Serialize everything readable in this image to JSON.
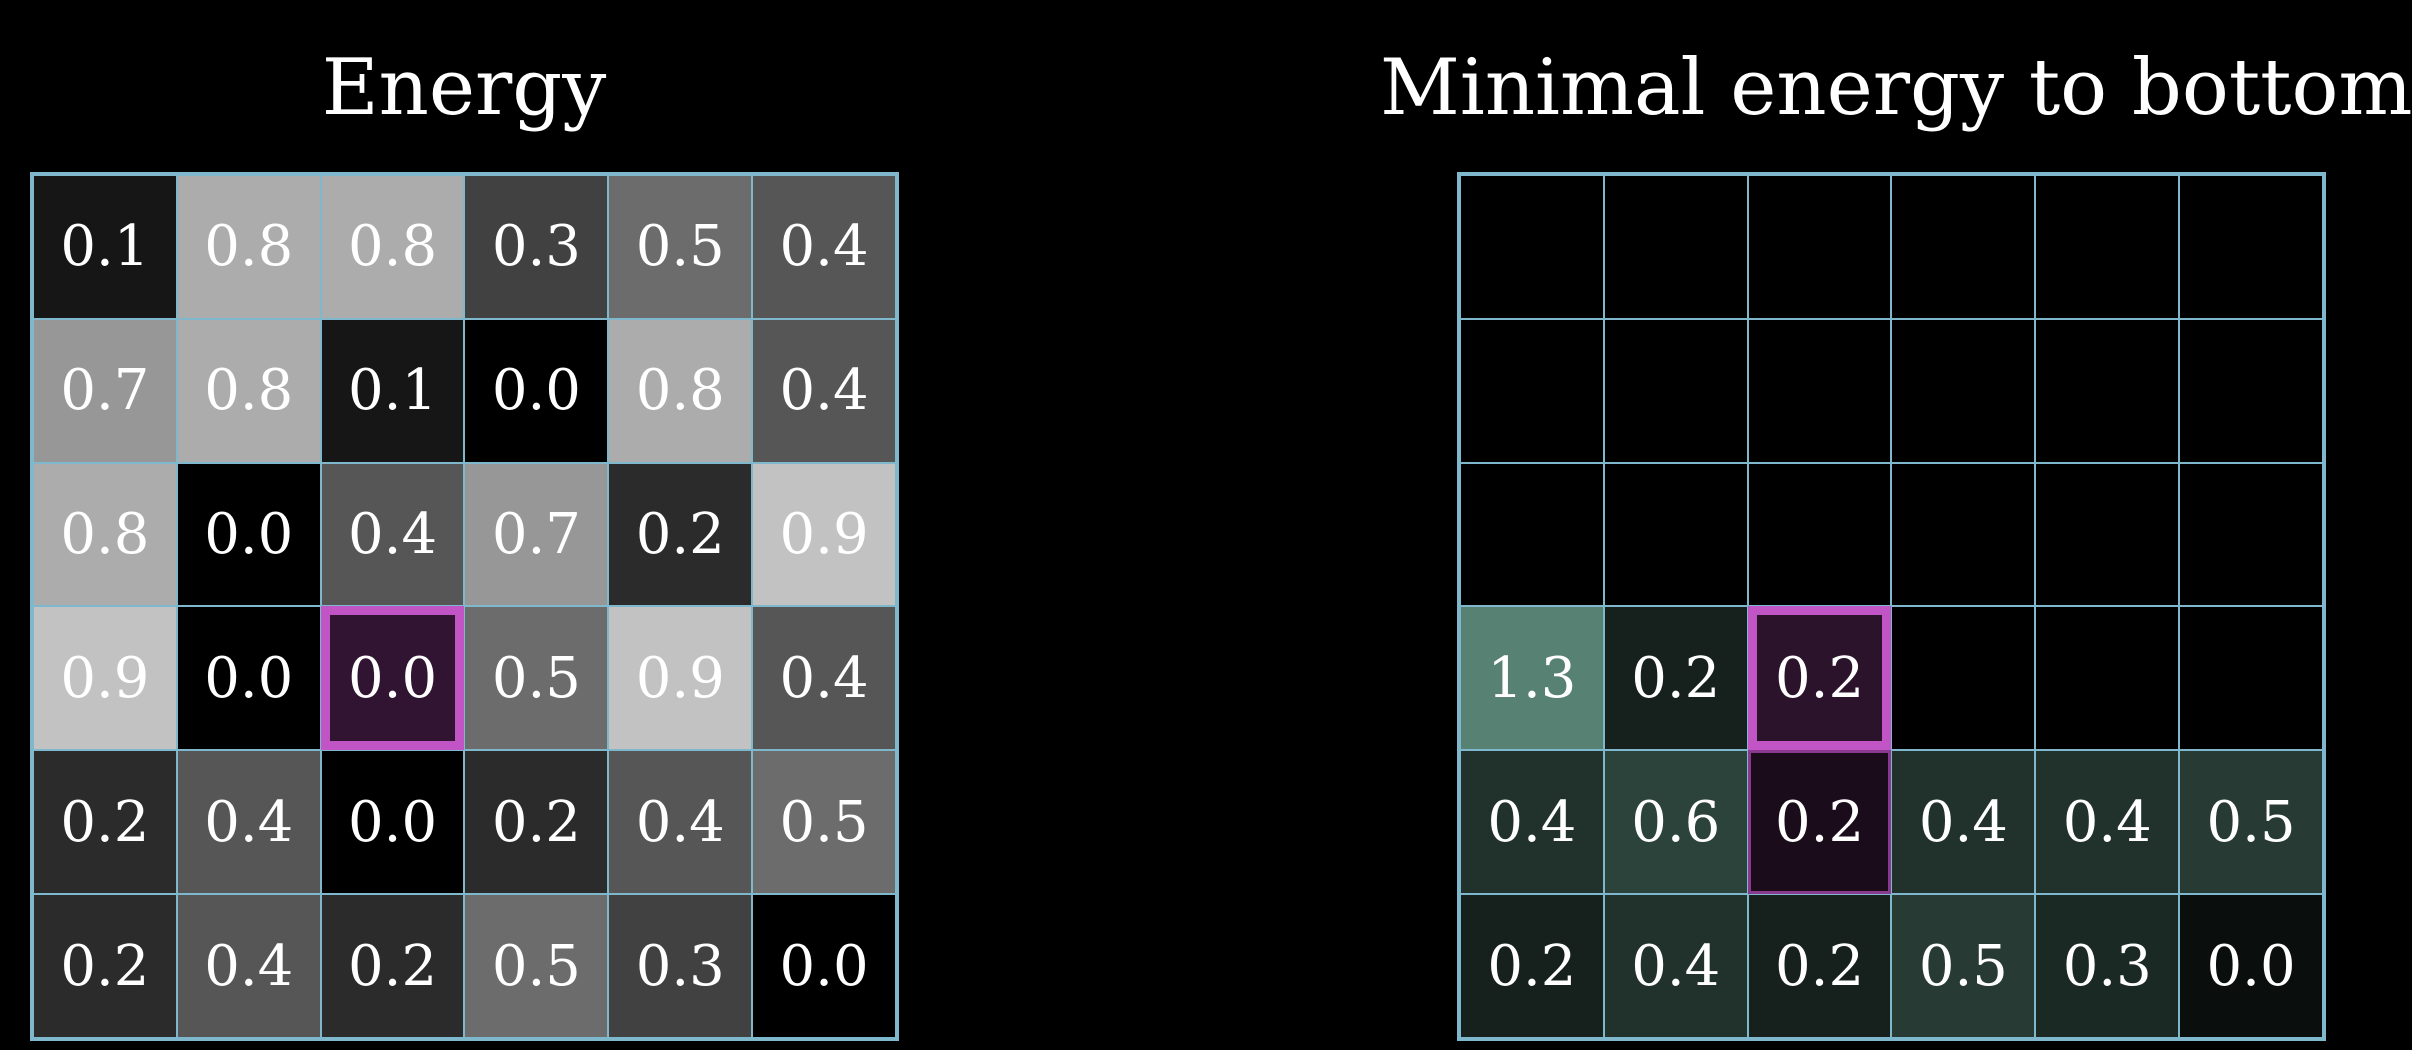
{
  "left_panel": {
    "title": "Energy",
    "grid": [
      [
        "0.1",
        "0.8",
        "0.8",
        "0.3",
        "0.5",
        "0.4"
      ],
      [
        "0.7",
        "0.8",
        "0.1",
        "0.0",
        "0.8",
        "0.4"
      ],
      [
        "0.8",
        "0.0",
        "0.4",
        "0.7",
        "0.2",
        "0.9"
      ],
      [
        "0.9",
        "0.0",
        "0.0",
        "0.5",
        "0.9",
        "0.4"
      ],
      [
        "0.2",
        "0.4",
        "0.0",
        "0.2",
        "0.4",
        "0.5"
      ],
      [
        "0.2",
        "0.4",
        "0.2",
        "0.5",
        "0.3",
        "0.0"
      ]
    ],
    "highlighted_cell": {
      "row": 3,
      "col": 2
    }
  },
  "right_panel": {
    "title": "Minimal energy to bottom",
    "grid": [
      [
        "",
        "",
        "",
        "",
        "",
        ""
      ],
      [
        "",
        "",
        "",
        "",
        "",
        ""
      ],
      [
        "",
        "",
        "",
        "",
        "",
        ""
      ],
      [
        "1.3",
        "0.2",
        "0.2",
        "",
        "",
        ""
      ],
      [
        "0.4",
        "0.6",
        "0.2",
        "0.4",
        "0.4",
        "0.5"
      ],
      [
        "0.2",
        "0.4",
        "0.2",
        "0.5",
        "0.3",
        "0.0"
      ]
    ],
    "highlighted_cell": {
      "row": 3,
      "col": 2
    },
    "highlighted_path_cells": [
      {
        "row": 4,
        "col": 2
      }
    ],
    "fill_color": "#7ab8a4",
    "highlight_fill_color": "#c255c5"
  },
  "colors": {
    "background": "#000000",
    "grid_line": "#7fb8cc",
    "highlight": "#c255c5",
    "text": "#ffffff"
  }
}
